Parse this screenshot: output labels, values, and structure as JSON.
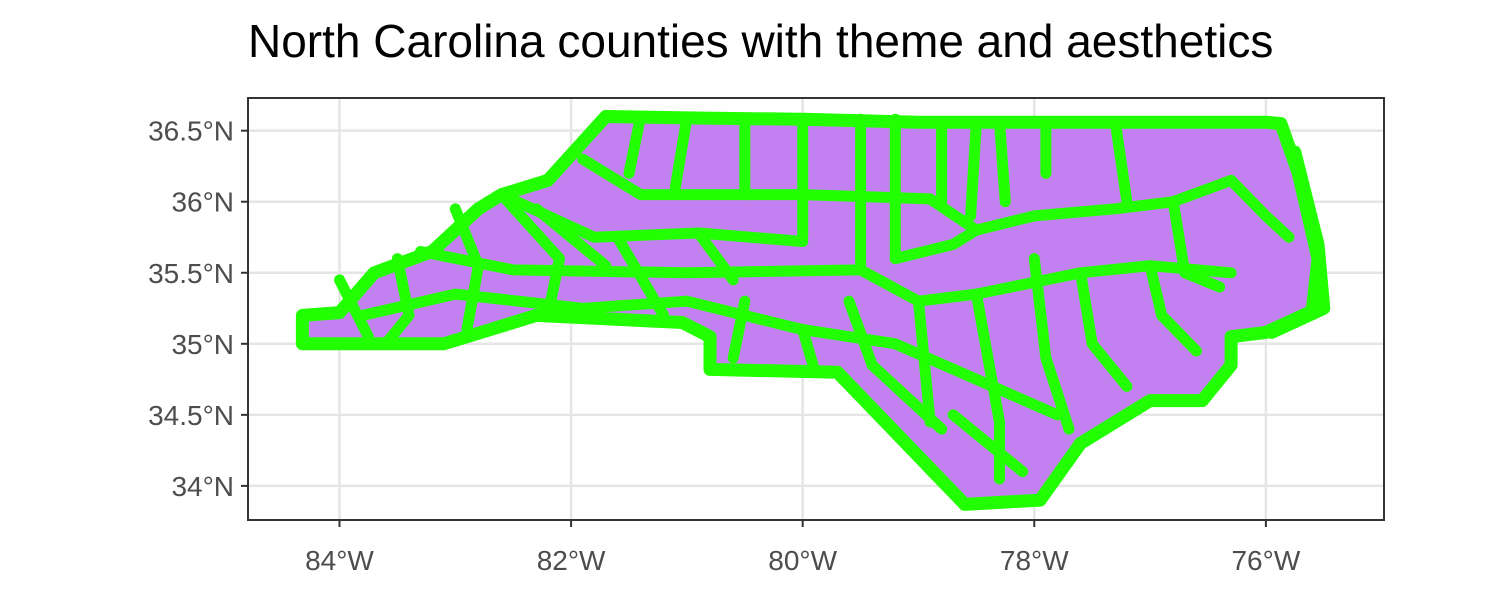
{
  "title": "North Carolina counties with theme and aesthetics",
  "chart_data": {
    "type": "map",
    "title": "North Carolina counties with theme and aesthetics",
    "xlabel": "",
    "ylabel": "",
    "x_ticks": [
      {
        "value": -84,
        "label": "84°W"
      },
      {
        "value": -82,
        "label": "82°W"
      },
      {
        "value": -80,
        "label": "80°W"
      },
      {
        "value": -78,
        "label": "78°W"
      },
      {
        "value": -76,
        "label": "76°W"
      }
    ],
    "y_ticks": [
      {
        "value": 34.0,
        "label": "34°N"
      },
      {
        "value": 34.5,
        "label": "34.5°N"
      },
      {
        "value": 35.0,
        "label": "35°N"
      },
      {
        "value": 35.5,
        "label": "35.5°N"
      },
      {
        "value": 36.0,
        "label": "36°N"
      },
      {
        "value": 36.5,
        "label": "36.5°N"
      }
    ],
    "xlim": [
      -84.79,
      -74.98
    ],
    "ylim": [
      33.76,
      36.73
    ],
    "grid": true,
    "legend": "none",
    "fill_color": "#c27fef",
    "stroke_color": "#21ff00",
    "panel_border_color": "#333333",
    "grid_color": "#e5e5e5",
    "state_outline": [
      [
        -84.32,
        35.0
      ],
      [
        -84.32,
        35.2
      ],
      [
        -84.0,
        35.22
      ],
      [
        -83.7,
        35.5
      ],
      [
        -83.2,
        35.65
      ],
      [
        -82.8,
        35.95
      ],
      [
        -82.6,
        36.05
      ],
      [
        -82.2,
        36.15
      ],
      [
        -81.7,
        36.6
      ],
      [
        -81.0,
        36.59
      ],
      [
        -80.0,
        36.58
      ],
      [
        -79.0,
        36.56
      ],
      [
        -78.0,
        36.56
      ],
      [
        -77.0,
        36.56
      ],
      [
        -76.0,
        36.56
      ],
      [
        -75.87,
        36.55
      ],
      [
        -75.72,
        36.2
      ],
      [
        -75.55,
        35.6
      ],
      [
        -75.6,
        35.23
      ],
      [
        -76.0,
        35.08
      ],
      [
        -76.3,
        35.05
      ],
      [
        -76.3,
        34.85
      ],
      [
        -76.55,
        34.6
      ],
      [
        -77.0,
        34.6
      ],
      [
        -77.6,
        34.3
      ],
      [
        -77.95,
        33.9
      ],
      [
        -78.6,
        33.87
      ],
      [
        -79.7,
        34.8
      ],
      [
        -80.8,
        34.82
      ],
      [
        -80.8,
        35.05
      ],
      [
        -81.04,
        35.15
      ],
      [
        -82.3,
        35.2
      ],
      [
        -83.1,
        35.0
      ],
      [
        -84.32,
        35.0
      ]
    ],
    "outer_banks": [
      [
        -75.75,
        36.35
      ],
      [
        -75.55,
        35.7
      ],
      [
        -75.5,
        35.25
      ],
      [
        -75.95,
        35.08
      ]
    ],
    "interior_lines": [
      [
        [
          -80.0,
          36.58
        ],
        [
          -80.0,
          35.75
        ]
      ],
      [
        [
          -79.5,
          36.58
        ],
        [
          -79.5,
          35.52
        ]
      ],
      [
        [
          -79.2,
          36.58
        ],
        [
          -79.2,
          35.6
        ]
      ],
      [
        [
          -78.8,
          36.56
        ],
        [
          -78.8,
          36.0
        ]
      ],
      [
        [
          -78.5,
          36.56
        ],
        [
          -78.55,
          35.9
        ]
      ],
      [
        [
          -78.3,
          36.56
        ],
        [
          -78.25,
          36.0
        ]
      ],
      [
        [
          -77.9,
          36.56
        ],
        [
          -77.9,
          36.2
        ]
      ],
      [
        [
          -77.3,
          36.56
        ],
        [
          -77.2,
          36.0
        ]
      ],
      [
        [
          -80.5,
          36.58
        ],
        [
          -80.5,
          36.05
        ]
      ],
      [
        [
          -81.0,
          36.59
        ],
        [
          -81.1,
          36.1
        ]
      ],
      [
        [
          -81.4,
          36.6
        ],
        [
          -81.5,
          36.2
        ]
      ],
      [
        [
          -81.9,
          36.3
        ],
        [
          -81.4,
          36.05
        ],
        [
          -80.0,
          36.05
        ],
        [
          -78.9,
          36.02
        ]
      ],
      [
        [
          -82.6,
          36.05
        ],
        [
          -81.8,
          35.75
        ],
        [
          -80.9,
          35.78
        ],
        [
          -80.0,
          35.72
        ]
      ],
      [
        [
          -83.3,
          35.65
        ],
        [
          -82.5,
          35.52
        ],
        [
          -81.0,
          35.5
        ],
        [
          -79.5,
          35.52
        ]
      ],
      [
        [
          -83.8,
          35.2
        ],
        [
          -83.0,
          35.35
        ],
        [
          -81.9,
          35.25
        ],
        [
          -81.0,
          35.3
        ]
      ],
      [
        [
          -81.0,
          35.3
        ],
        [
          -80.0,
          35.1
        ],
        [
          -79.2,
          35.0
        ],
        [
          -78.5,
          34.75
        ],
        [
          -77.8,
          34.5
        ]
      ],
      [
        [
          -79.5,
          35.52
        ],
        [
          -79.0,
          35.3
        ],
        [
          -78.5,
          35.35
        ],
        [
          -77.6,
          35.5
        ],
        [
          -77.0,
          35.55
        ],
        [
          -76.3,
          35.5
        ]
      ],
      [
        [
          -78.9,
          36.02
        ],
        [
          -78.5,
          35.8
        ],
        [
          -78.0,
          35.9
        ],
        [
          -77.3,
          35.95
        ],
        [
          -76.8,
          36.0
        ],
        [
          -76.3,
          36.15
        ]
      ],
      [
        [
          -80.5,
          35.3
        ],
        [
          -80.6,
          34.9
        ]
      ],
      [
        [
          -80.0,
          35.1
        ],
        [
          -79.9,
          34.82
        ]
      ],
      [
        [
          -79.6,
          35.3
        ],
        [
          -79.4,
          34.85
        ]
      ],
      [
        [
          -79.0,
          35.3
        ],
        [
          -78.9,
          34.45
        ]
      ],
      [
        [
          -78.5,
          35.35
        ],
        [
          -78.3,
          34.45
        ],
        [
          -78.3,
          34.05
        ]
      ],
      [
        [
          -78.0,
          35.6
        ],
        [
          -77.9,
          34.9
        ],
        [
          -77.7,
          34.4
        ]
      ],
      [
        [
          -77.6,
          35.5
        ],
        [
          -77.5,
          35.0
        ],
        [
          -77.2,
          34.7
        ]
      ],
      [
        [
          -77.0,
          35.55
        ],
        [
          -76.9,
          35.2
        ],
        [
          -76.6,
          34.95
        ]
      ],
      [
        [
          -76.8,
          36.0
        ],
        [
          -76.7,
          35.5
        ],
        [
          -76.4,
          35.4
        ]
      ],
      [
        [
          -76.3,
          36.15
        ],
        [
          -76.0,
          35.9
        ],
        [
          -75.8,
          35.75
        ]
      ],
      [
        [
          -79.2,
          35.6
        ],
        [
          -78.7,
          35.7
        ],
        [
          -78.5,
          35.8
        ]
      ],
      [
        [
          -82.6,
          36.05
        ],
        [
          -82.1,
          35.6
        ],
        [
          -82.2,
          35.2
        ]
      ],
      [
        [
          -82.3,
          35.95
        ],
        [
          -81.7,
          35.55
        ]
      ],
      [
        [
          -83.0,
          35.95
        ],
        [
          -82.8,
          35.55
        ],
        [
          -82.9,
          35.1
        ]
      ],
      [
        [
          -83.5,
          35.6
        ],
        [
          -83.4,
          35.2
        ],
        [
          -83.6,
          35.0
        ]
      ],
      [
        [
          -84.0,
          35.45
        ],
        [
          -83.75,
          35.05
        ]
      ],
      [
        [
          -81.6,
          35.75
        ],
        [
          -81.2,
          35.2
        ]
      ],
      [
        [
          -80.9,
          35.78
        ],
        [
          -80.6,
          35.45
        ]
      ],
      [
        [
          -78.7,
          34.5
        ],
        [
          -78.1,
          34.1
        ]
      ],
      [
        [
          -79.4,
          34.85
        ],
        [
          -78.8,
          34.4
        ]
      ]
    ]
  }
}
